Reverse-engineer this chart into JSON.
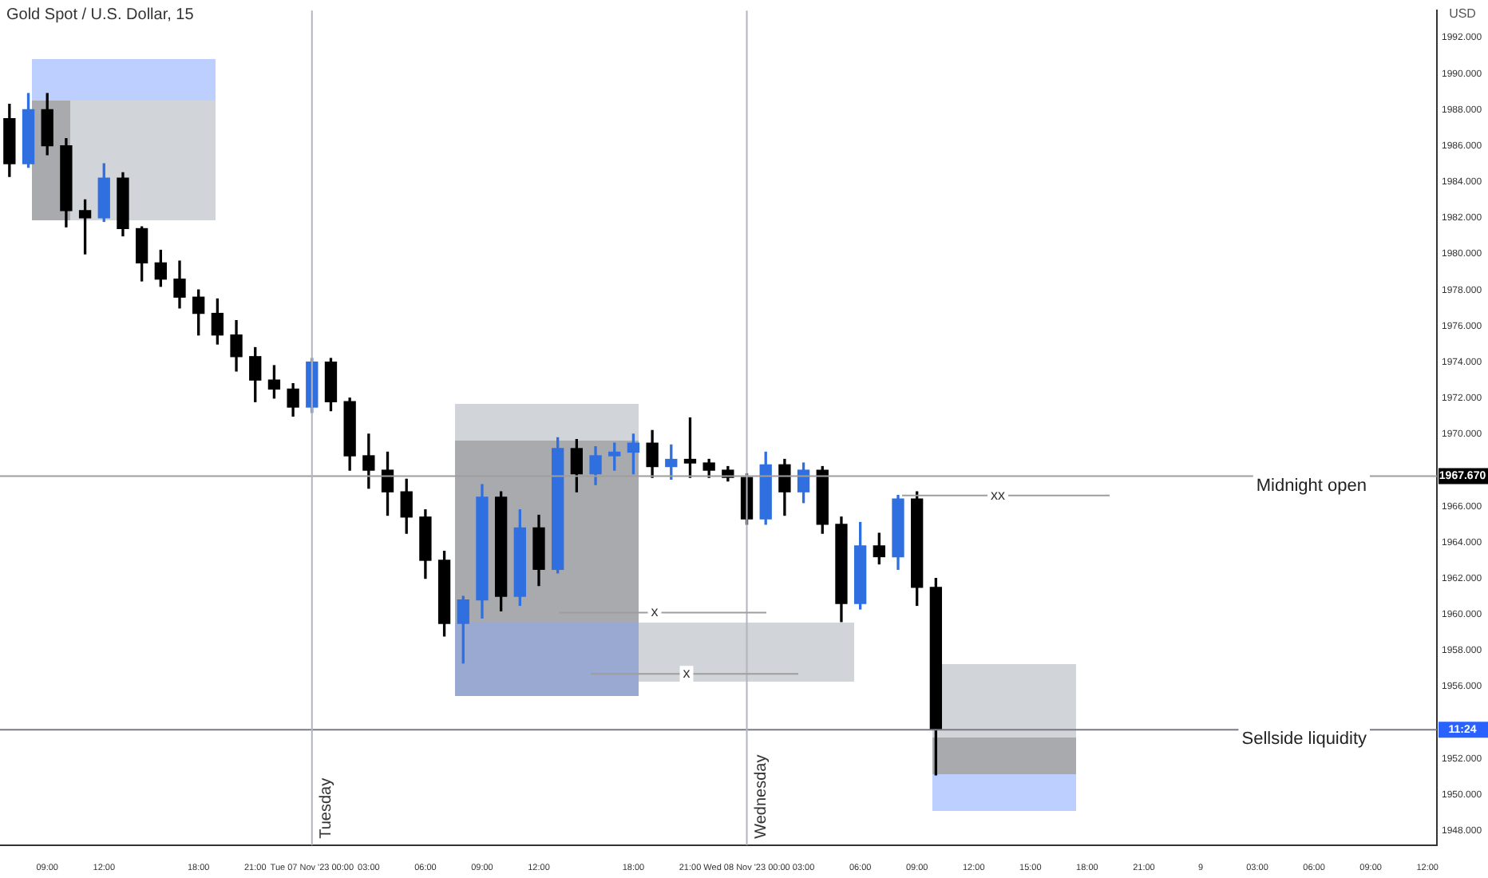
{
  "chart_data": {
    "type": "candlestick",
    "title": "Gold Spot / U.S. Dollar, 15",
    "ylabel": "USD",
    "categories": [
      null,
      null,
      "09:00",
      null,
      null,
      "12:00",
      null,
      null,
      null,
      null,
      "18:00",
      null,
      null,
      "21:00",
      null,
      null,
      "Tue 07 Nov '23 00:00",
      null,
      null,
      "03:00",
      null,
      null,
      "06:00",
      null,
      null,
      "09:00",
      null,
      null,
      "12:00",
      null,
      null,
      null,
      null,
      "18:00",
      null,
      null,
      "21:00",
      null,
      null,
      "Wed 08 Nov '23 00:00",
      null,
      null,
      "03:00",
      null,
      null,
      "06:00",
      null,
      null,
      "09:00",
      null,
      null,
      "12:00",
      null,
      null,
      "15:00",
      null,
      null,
      "18:00",
      null,
      null,
      "21:00",
      null,
      null,
      "9",
      null,
      null,
      "03:00",
      null,
      null,
      "06:00",
      null,
      null,
      "09:00",
      null,
      null,
      "12:00"
    ],
    "ohlc": [
      [
        1987.5,
        1988.3,
        1984.3,
        1985.0
      ],
      [
        1985.0,
        1988.9,
        1984.8,
        1988.0
      ],
      [
        1988.0,
        1988.9,
        1985.5,
        1986.0
      ],
      [
        1986.0,
        1986.4,
        1981.5,
        1982.4
      ],
      [
        1982.4,
        1983.0,
        1980.0,
        1982.0
      ],
      [
        1982.0,
        1985.0,
        1981.8,
        1984.2
      ],
      [
        1984.2,
        1984.5,
        1981.0,
        1981.4
      ],
      [
        1981.4,
        1981.5,
        1978.5,
        1979.5
      ],
      [
        1979.5,
        1980.2,
        1978.2,
        1978.6
      ],
      [
        1978.6,
        1979.6,
        1977.0,
        1977.6
      ],
      [
        1977.6,
        1978.0,
        1975.5,
        1976.7
      ],
      [
        1976.7,
        1977.5,
        1975.0,
        1975.5
      ],
      [
        1975.5,
        1976.3,
        1973.5,
        1974.3
      ],
      [
        1974.3,
        1974.8,
        1971.8,
        1973.0
      ],
      [
        1973.0,
        1973.8,
        1972.0,
        1972.5
      ],
      [
        1972.5,
        1972.8,
        1971.0,
        1971.5
      ],
      [
        1971.5,
        1974.2,
        1971.2,
        1974.0
      ],
      [
        1974.0,
        1974.2,
        1971.3,
        1971.8
      ],
      [
        1971.8,
        1972.0,
        1968.0,
        1968.8
      ],
      [
        1968.8,
        1970.0,
        1967.0,
        1968.0
      ],
      [
        1968.0,
        1969.0,
        1965.5,
        1966.8
      ],
      [
        1966.8,
        1967.5,
        1964.5,
        1965.4
      ],
      [
        1965.4,
        1965.8,
        1962.0,
        1963.0
      ],
      [
        1963.0,
        1963.5,
        1958.8,
        1959.5
      ],
      [
        1959.5,
        1961.0,
        1957.3,
        1960.8
      ],
      [
        1960.8,
        1967.2,
        1959.8,
        1966.5
      ],
      [
        1966.5,
        1966.8,
        1960.2,
        1961.0
      ],
      [
        1961.0,
        1965.8,
        1960.5,
        1964.8
      ],
      [
        1964.8,
        1965.5,
        1961.6,
        1962.5
      ],
      [
        1962.5,
        1969.8,
        1962.3,
        1969.2
      ],
      [
        1969.2,
        1969.7,
        1966.8,
        1967.8
      ],
      [
        1967.8,
        1969.3,
        1967.2,
        1968.8
      ],
      [
        1968.8,
        1969.5,
        1968.0,
        1969.0
      ],
      [
        1969.0,
        1970.0,
        1967.8,
        1969.5
      ],
      [
        1969.5,
        1970.2,
        1967.6,
        1968.2
      ],
      [
        1968.2,
        1969.4,
        1967.5,
        1968.6
      ],
      [
        1968.6,
        1970.9,
        1967.6,
        1968.4
      ],
      [
        1968.4,
        1968.6,
        1967.6,
        1968.0
      ],
      [
        1968.0,
        1968.2,
        1967.4,
        1967.6
      ],
      [
        1967.6,
        1967.8,
        1965.0,
        1965.3
      ],
      [
        1965.3,
        1969.0,
        1965.0,
        1968.3
      ],
      [
        1968.3,
        1968.6,
        1965.5,
        1966.8
      ],
      [
        1966.8,
        1968.4,
        1966.2,
        1968.0
      ],
      [
        1968.0,
        1968.2,
        1964.5,
        1965.0
      ],
      [
        1965.0,
        1965.4,
        1959.6,
        1960.6
      ],
      [
        1960.6,
        1965.1,
        1960.3,
        1963.8
      ],
      [
        1963.8,
        1964.5,
        1962.8,
        1963.2
      ],
      [
        1963.2,
        1966.6,
        1962.5,
        1966.4
      ],
      [
        1966.4,
        1966.8,
        1960.5,
        1961.5
      ],
      [
        1961.5,
        1962.0,
        1951.1,
        1953.6
      ],
      null,
      null,
      null,
      null,
      null,
      null,
      null,
      null,
      null,
      null,
      null,
      null,
      null,
      null,
      null,
      null,
      null,
      null,
      null,
      null,
      null,
      null,
      null,
      null,
      null,
      null
    ],
    "colors": [
      "#000000",
      "#2f6fe0",
      "#000000",
      "#000000",
      "#000000",
      "#2f6fe0",
      "#000000",
      "#000000",
      "#000000",
      "#000000",
      "#000000",
      "#000000",
      "#000000",
      "#000000",
      "#000000",
      "#000000",
      "#2f6fe0",
      "#000000",
      "#000000",
      "#000000",
      "#000000",
      "#000000",
      "#000000",
      "#000000",
      "#2f6fe0",
      "#2f6fe0",
      "#000000",
      "#2f6fe0",
      "#000000",
      "#2f6fe0",
      "#000000",
      "#2f6fe0",
      "#2f6fe0",
      "#2f6fe0",
      "#000000",
      "#2f6fe0",
      "#000000",
      "#000000",
      "#000000",
      "#000000",
      "#2f6fe0",
      "#000000",
      "#2f6fe0",
      "#000000",
      "#000000",
      "#2f6fe0",
      "#000000",
      "#2f6fe0",
      "#000000",
      "#000000",
      null,
      null,
      null,
      null,
      null,
      null,
      null,
      null,
      null,
      null,
      null,
      null,
      null,
      null,
      null,
      null,
      null,
      null,
      null,
      null,
      null,
      null,
      null,
      null,
      null,
      null
    ],
    "ylim": [
      1947.2,
      1993.5
    ],
    "yticks": [
      {
        "value": 1948,
        "label": "1948.000"
      },
      {
        "value": 1950,
        "label": "1950.000"
      },
      {
        "value": 1952,
        "label": "1952.000"
      },
      {
        "value": 1956,
        "label": "1956.000"
      },
      {
        "value": 1958,
        "label": "1958.000"
      },
      {
        "value": 1960,
        "label": "1960.000"
      },
      {
        "value": 1962,
        "label": "1962.000"
      },
      {
        "value": 1964,
        "label": "1964.000"
      },
      {
        "value": 1966,
        "label": "1966.000"
      },
      {
        "value": 1970,
        "label": "1970.000"
      },
      {
        "value": 1972,
        "label": "1972.000"
      },
      {
        "value": 1974,
        "label": "1974.000"
      },
      {
        "value": 1976,
        "label": "1976.000"
      },
      {
        "value": 1978,
        "label": "1978.000"
      },
      {
        "value": 1980,
        "label": "1980.000"
      },
      {
        "value": 1982,
        "label": "1982.000"
      },
      {
        "value": 1984,
        "label": "1984.000"
      },
      {
        "value": 1986,
        "label": "1986.000"
      },
      {
        "value": 1988,
        "label": "1988.000"
      },
      {
        "value": 1990,
        "label": "1990.000"
      },
      {
        "value": 1992,
        "label": "1992.000"
      }
    ],
    "ref_lines": [
      {
        "axis": "y",
        "value": 1967.67,
        "label": "Midnight open",
        "color": "#9e9e9e"
      },
      {
        "axis": "y",
        "value": 1953.6,
        "label": "Sellside liquidity",
        "color": "#787b86"
      },
      {
        "axis": "x",
        "value": "Tue 07 Nov '23 00:00",
        "label": "Tuesday",
        "color": "#b2b5be"
      },
      {
        "axis": "x",
        "value": "Wed 08 Nov '23 00:00",
        "label": "Wednesday",
        "color": "#b2b5be"
      }
    ],
    "annotations": [
      {
        "text": "x",
        "y": 1960.1
      },
      {
        "text": "x",
        "y": 1956.7
      },
      {
        "text": "xx",
        "y": 1966.6
      },
      {
        "text": "1967.670",
        "y": 1967.67
      },
      {
        "text": "11:24",
        "y": 1953.6
      }
    ],
    "grid": false,
    "legend": false
  }
}
